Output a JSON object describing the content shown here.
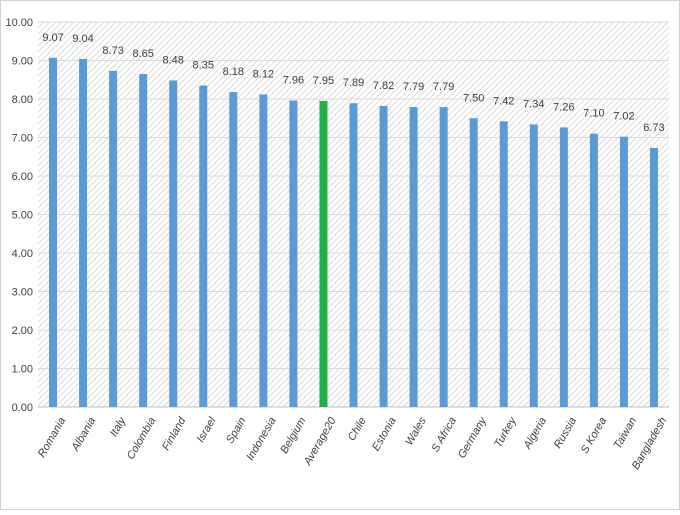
{
  "chart_data": {
    "type": "bar",
    "title": "",
    "xlabel": "",
    "ylabel": "",
    "ylim": [
      0,
      10
    ],
    "y_ticks": [
      "0.00",
      "1.00",
      "2.00",
      "3.00",
      "4.00",
      "5.00",
      "6.00",
      "7.00",
      "8.00",
      "9.00",
      "10.00"
    ],
    "grid": "diagonal-hatch",
    "legend": "none",
    "categories": [
      "Romania",
      "Albania",
      "Italy",
      "Colombia",
      "Finland",
      "Israel",
      "Spain",
      "Indonesia",
      "Belgium",
      "Average20",
      "Chile",
      "Estonia",
      "Wales",
      "S Africa",
      "Germany",
      "Turkey",
      "Algeria",
      "Russia",
      "S Korea",
      "Taiwan",
      "Bangladesh"
    ],
    "values": [
      9.07,
      9.04,
      8.73,
      8.65,
      8.48,
      8.35,
      8.18,
      8.12,
      7.96,
      7.95,
      7.89,
      7.82,
      7.79,
      7.79,
      7.5,
      7.42,
      7.34,
      7.26,
      7.1,
      7.02,
      6.73
    ],
    "value_labels": [
      "9.07",
      "9.04",
      "8.73",
      "8.65",
      "8.48",
      "8.35",
      "8.18",
      "8.12",
      "7.96",
      "7.95",
      "7.89",
      "7.82",
      "7.79",
      "7.79",
      "7.50",
      "7.42",
      "7.34",
      "7.26",
      "7.10",
      "7.02",
      "6.73"
    ],
    "highlight_category": "Average20",
    "colors": {
      "bar": "#5b9bd5",
      "highlight": "#1fb04a",
      "axis_text": "#404040",
      "grid": "#d9d9d9",
      "border": "#d0d0d0"
    }
  }
}
